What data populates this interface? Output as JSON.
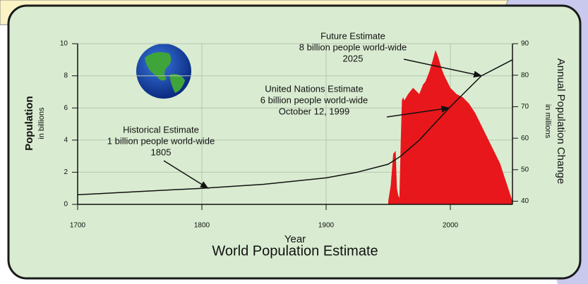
{
  "chart_data": {
    "type": "line_area",
    "title": "World Population Estimate",
    "x_label": "Year",
    "y_label": "Population",
    "y_sublabel": "in billions",
    "y2_label": "Annual Population Change",
    "y2_sublabel": "in millions",
    "xlim": [
      1700,
      2050
    ],
    "xticks": [
      1700,
      1800,
      1900,
      2000
    ],
    "ylim": [
      0,
      10
    ],
    "yticks": [
      0,
      2,
      4,
      6,
      8,
      10
    ],
    "y2lim": [
      39,
      90
    ],
    "y2ticks": [
      40,
      50,
      60,
      70,
      80,
      90
    ],
    "grid": true,
    "series": [
      {
        "color": "#111111",
        "kind": "line",
        "x": [
          1700,
          1750,
          1800,
          1850,
          1900,
          1925,
          1950,
          1960,
          1975,
          1987,
          1999,
          2012,
          2025,
          2050
        ],
        "values": [
          0.6,
          0.8,
          1.0,
          1.25,
          1.65,
          2.0,
          2.5,
          3.0,
          4.0,
          5.0,
          6.0,
          7.0,
          8.0,
          9.0
        ]
      },
      {
        "color": "#e8171b",
        "kind": "area",
        "axis": "y2",
        "x": [
          1950,
          1952,
          1954,
          1956,
          1957,
          1958,
          1959,
          1960,
          1961,
          1962,
          1963,
          1966,
          1970,
          1975,
          1978,
          1980,
          1983,
          1986,
          1988,
          1990,
          1993,
          1995,
          2000,
          2005,
          2010,
          2015,
          2020,
          2025,
          2030,
          2035,
          2040,
          2045,
          2050
        ],
        "values": [
          40,
          45,
          55,
          56,
          44,
          42,
          41,
          58,
          72,
          73,
          72,
          74,
          76,
          74,
          77,
          78,
          81,
          85,
          88,
          86,
          82,
          80,
          76,
          74,
          73,
          71,
          68,
          64,
          60,
          56,
          52,
          46,
          40
        ]
      }
    ],
    "annotations": [
      {
        "lines": [
          "Historical Estimate",
          "1 billion people world-wide",
          "1805"
        ],
        "x": 1805,
        "y": 1
      },
      {
        "lines": [
          "United Nations Estimate",
          "6 billion people world-wide",
          "October 12, 1999"
        ],
        "x": 1999,
        "y": 6
      },
      {
        "lines": [
          "Future Estimate",
          "8 billion people world-wide",
          "2025"
        ],
        "x": 2025,
        "y": 8
      }
    ]
  }
}
